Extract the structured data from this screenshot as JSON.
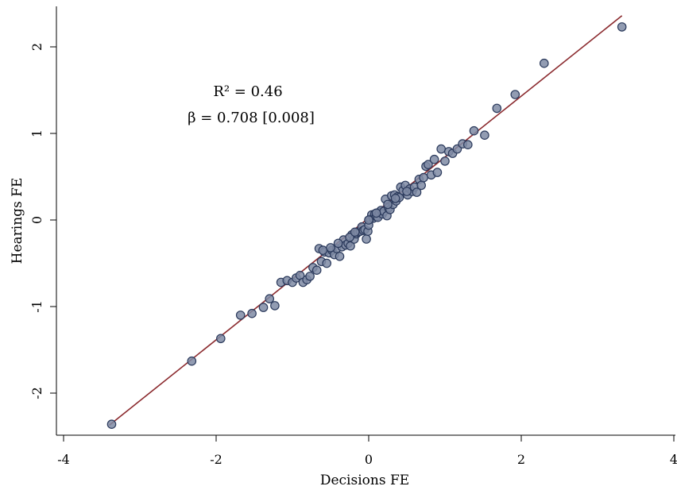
{
  "chart_data": {
    "type": "scatter",
    "xlabel": "Decisions FE",
    "ylabel": "Hearings FE",
    "xlim": [
      -4.2,
      4.0
    ],
    "ylim": [
      -2.5,
      2.5
    ],
    "xticks": [
      -4,
      -2,
      0,
      2,
      4
    ],
    "yticks": [
      -2,
      -1,
      0,
      1,
      2
    ],
    "x_tick_labels": [
      "-4",
      "-2",
      "0",
      "2",
      "4"
    ],
    "y_tick_labels": [
      "-2",
      "-1",
      "0",
      "1",
      "2"
    ],
    "grid": false,
    "annotations": {
      "r2": "R² = 0.46",
      "beta": "β = 0.708 [0.008]"
    },
    "fit_line": {
      "x": [
        -3.4,
        3.32
      ],
      "y": [
        -2.37,
        2.36
      ]
    },
    "colors": {
      "point_fill": "#7f8ba5",
      "point_edge": "#2b3a5c",
      "fit_line": "#8b2a2e"
    },
    "points": [
      [
        -3.37,
        -2.36
      ],
      [
        -2.32,
        -1.63
      ],
      [
        -1.94,
        -1.37
      ],
      [
        -1.68,
        -1.1
      ],
      [
        -1.53,
        -1.08
      ],
      [
        -1.38,
        -1.01
      ],
      [
        -1.3,
        -0.91
      ],
      [
        -1.23,
        -0.99
      ],
      [
        -1.15,
        -0.72
      ],
      [
        -1.07,
        -0.7
      ],
      [
        -1.0,
        -0.72
      ],
      [
        -0.95,
        -0.67
      ],
      [
        -0.9,
        -0.64
      ],
      [
        -0.86,
        -0.72
      ],
      [
        -0.81,
        -0.69
      ],
      [
        -0.77,
        -0.65
      ],
      [
        -0.73,
        -0.55
      ],
      [
        -0.68,
        -0.58
      ],
      [
        -0.65,
        -0.33
      ],
      [
        -0.62,
        -0.48
      ],
      [
        -0.58,
        -0.37
      ],
      [
        -0.55,
        -0.5
      ],
      [
        -0.52,
        -0.38
      ],
      [
        -0.48,
        -0.35
      ],
      [
        -0.45,
        -0.4
      ],
      [
        -0.42,
        -0.33
      ],
      [
        -0.38,
        -0.42
      ],
      [
        -0.35,
        -0.31
      ],
      [
        -0.33,
        -0.23
      ],
      [
        -0.3,
        -0.29
      ],
      [
        -0.27,
        -0.27
      ],
      [
        -0.24,
        -0.3
      ],
      [
        -0.22,
        -0.17
      ],
      [
        -0.19,
        -0.22
      ],
      [
        -0.16,
        -0.16
      ],
      [
        -0.14,
        -0.14
      ],
      [
        -0.11,
        -0.13
      ],
      [
        -0.09,
        -0.08
      ],
      [
        -0.07,
        -0.12
      ],
      [
        -0.05,
        -0.11
      ],
      [
        -0.03,
        -0.22
      ],
      [
        -0.01,
        -0.13
      ],
      [
        0.0,
        -0.06
      ],
      [
        0.02,
        0.01
      ],
      [
        0.04,
        0.06
      ],
      [
        0.06,
        0.02
      ],
      [
        0.08,
        0.07
      ],
      [
        0.1,
        0.04
      ],
      [
        0.12,
        0.03
      ],
      [
        0.14,
        0.09
      ],
      [
        0.16,
        0.11
      ],
      [
        0.18,
        0.07
      ],
      [
        0.2,
        0.1
      ],
      [
        0.22,
        0.24
      ],
      [
        0.24,
        0.05
      ],
      [
        0.26,
        0.14
      ],
      [
        0.28,
        0.12
      ],
      [
        0.3,
        0.28
      ],
      [
        0.32,
        0.18
      ],
      [
        0.34,
        0.29
      ],
      [
        0.36,
        0.22
      ],
      [
        0.38,
        0.27
      ],
      [
        0.4,
        0.26
      ],
      [
        0.42,
        0.38
      ],
      [
        0.45,
        0.34
      ],
      [
        0.48,
        0.4
      ],
      [
        0.51,
        0.29
      ],
      [
        0.54,
        0.36
      ],
      [
        0.57,
        0.33
      ],
      [
        0.6,
        0.38
      ],
      [
        0.63,
        0.32
      ],
      [
        0.66,
        0.47
      ],
      [
        0.69,
        0.4
      ],
      [
        0.72,
        0.49
      ],
      [
        0.75,
        0.62
      ],
      [
        0.78,
        0.64
      ],
      [
        0.82,
        0.52
      ],
      [
        0.86,
        0.7
      ],
      [
        0.9,
        0.55
      ],
      [
        0.95,
        0.82
      ],
      [
        1.0,
        0.68
      ],
      [
        1.05,
        0.79
      ],
      [
        1.1,
        0.77
      ],
      [
        1.16,
        0.82
      ],
      [
        1.23,
        0.88
      ],
      [
        1.3,
        0.87
      ],
      [
        1.38,
        1.03
      ],
      [
        1.52,
        0.98
      ],
      [
        1.68,
        1.29
      ],
      [
        1.92,
        1.45
      ],
      [
        2.3,
        1.81
      ],
      [
        3.32,
        2.23
      ],
      [
        -0.6,
        -0.35
      ],
      [
        -0.5,
        -0.32
      ],
      [
        -0.4,
        -0.27
      ],
      [
        -0.25,
        -0.2
      ],
      [
        -0.18,
        -0.14
      ],
      [
        0.0,
        0.0
      ],
      [
        0.1,
        0.08
      ],
      [
        0.25,
        0.18
      ],
      [
        0.35,
        0.25
      ],
      [
        0.5,
        0.33
      ]
    ]
  }
}
